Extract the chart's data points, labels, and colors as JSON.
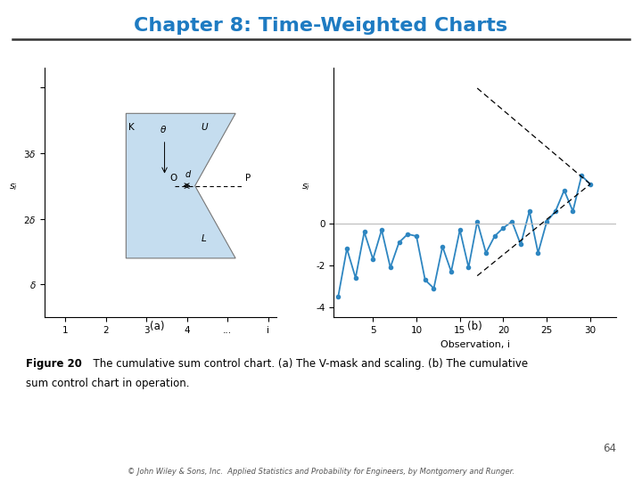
{
  "title": "Chapter 8: Time-Weighted Charts",
  "title_color": "#1E7BC2",
  "title_fontsize": 16,
  "bg_color": "#FFFFFF",
  "caption_bold": "Figure 20",
  "caption_normal": "  The cumulative sum control chart. (a) The V-mask and scaling. (b) The cumulative\nsum control chart in operation.",
  "footer": "© John Wiley & Sons, Inc.  Applied Statistics and Probability for Engineers, by Montgomery and Runger.",
  "page_num": "64",
  "left_plot": {
    "vmask_fill_color": "#C5DDEF",
    "vmask_edge_color": "#777777",
    "vmask_x": [
      2.5,
      5.2,
      4.2,
      5.2,
      2.5
    ],
    "vmask_y": [
      3.6,
      3.6,
      2.5,
      1.4,
      1.4
    ],
    "xlim": [
      0.5,
      6.2
    ],
    "ylim": [
      0.5,
      4.3
    ]
  },
  "right_plot": {
    "xlabel": "Observation, i",
    "ylabel": "s_i",
    "sublabel": "(b)",
    "cusum_x": [
      1,
      2,
      3,
      4,
      5,
      6,
      7,
      8,
      9,
      10,
      11,
      12,
      13,
      14,
      15,
      16,
      17,
      18,
      19,
      20,
      21,
      22,
      23,
      24,
      25,
      26,
      27,
      28,
      29,
      30
    ],
    "cusum_y": [
      -3.5,
      -1.2,
      -2.6,
      -0.4,
      -1.7,
      -0.3,
      -2.1,
      -0.9,
      -0.5,
      -0.6,
      -2.7,
      -3.1,
      -1.1,
      -2.3,
      -0.3,
      -2.1,
      0.1,
      -1.4,
      -0.6,
      -0.2,
      0.1,
      -1.0,
      0.6,
      -1.4,
      0.1,
      0.6,
      1.6,
      0.6,
      2.3,
      1.9
    ],
    "vmask_tip_x": 30,
    "vmask_tip_y": 1.9,
    "vmask_upper_x": 17,
    "vmask_upper_y": 6.5,
    "vmask_lower_x": 17,
    "vmask_lower_y": -2.5,
    "line_color": "#2E86C1",
    "vmask_color": "#333333",
    "xlim": [
      0.5,
      33
    ],
    "ylim": [
      -4.5,
      7.5
    ],
    "yticks": [
      -4,
      -2,
      0
    ],
    "ytick_labels": [
      "-4",
      "-2",
      "0"
    ],
    "xticks": [
      5,
      10,
      15,
      20,
      25,
      30
    ],
    "xtick_labels": [
      "5",
      "10",
      "15",
      "20",
      "25",
      "30"
    ]
  }
}
